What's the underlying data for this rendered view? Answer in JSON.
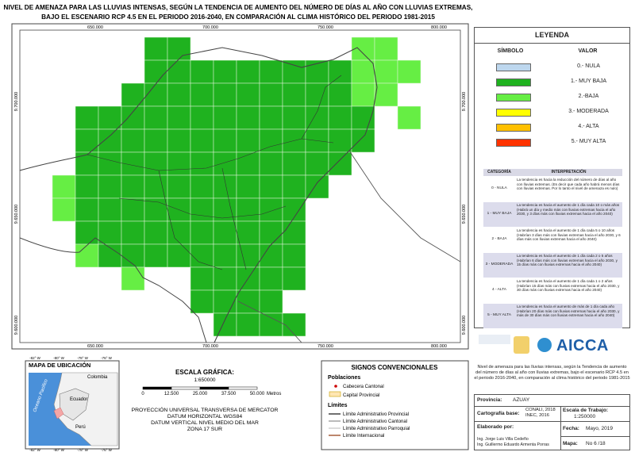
{
  "title": [
    "NIVEL DE AMENAZA PARA LAS LLUVIAS INTENSAS, SEGÚN LA TENDENCIA DE AUMENTO DEL NÚMERO DE DÍAS AL AÑO CON LLUVIAS EXTREMAS,",
    "BAJO EL ESCENARIO RCP 4.5 EN EL PERIODO 2016-2040, EN COMPARACIÓN AL CLIMA HISTÓRICO DEL PERIODO 1981-2015"
  ],
  "map": {
    "x_labels": [
      "650.000",
      "700.000",
      "750.000",
      "800.000"
    ],
    "y_labels": [
      "9.700.000",
      "9.650.000",
      "9.600.000"
    ]
  },
  "legend": {
    "title": "LEYENDA",
    "headers": [
      "SÍMBOLO",
      "VALOR"
    ],
    "items": [
      {
        "label": "0.- NULA",
        "color": "#bdd7ee"
      },
      {
        "label": "1.- MUY BAJA",
        "color": "#1fb21f"
      },
      {
        "label": "2.-BAJA",
        "color": "#66ee44"
      },
      {
        "label": "3.- MODERADA",
        "color": "#ffff00"
      },
      {
        "label": "4.- ALTA",
        "color": "#ffc000"
      },
      {
        "label": "5.- MUY ALTA",
        "color": "#ff3300"
      }
    ]
  },
  "interpretation": {
    "headers": [
      "CATEGORÍA",
      "INTERPRETACIÓN"
    ],
    "rows": [
      [
        "0 - NULA",
        "La tendencia es hacia la reducción del número de días al año con lluvias extremas. (Es decir que cada año habrá menos días con lluvias extremas. Por lo tanto el nivel de amenaza es nulo)"
      ],
      [
        "1 - MUY BAJA",
        "La tendencia es hacia el aumento de 1 día cada 10 o más años (Habrá un día y medio más con lluvias extremas hacia el año 2030, y 3 días más con lluvias extremas hacia el año 2040)"
      ],
      [
        "2 - BAJA",
        "La tendencia es hacia el aumento de 1 día cada 5 o 10 años (Habrían 3 días más con lluvias extremas hacia el año 2030, y 6 días más con lluvias extremas hacia el año 2040)"
      ],
      [
        "3 - MODERADA",
        "La tendencia es hacia el aumento de 1 día cada 2 o 5 años (Habrían 6 días más con lluvias extremas hacia el año 2030, y 15 días más con lluvias extremas hacia el año 2040)"
      ],
      [
        "4 - ALTA",
        "La tendencia es hacia el aumento de 1 día cada 1 o 2 años (Habrían 15 días más con lluvias extremas hacia el año 2030, y 30 días más con lluvias extremas hacia el año 2040)"
      ],
      [
        "5 - MUY ALTA",
        "La tendencia es hacia el aumento de más de 1 día cada año (Habrían 20 días más con lluvias extremas hacia el año 2030, y más de 30 días más con lluvias extremas hacia el año 2040)"
      ]
    ]
  },
  "logo": "AICCA",
  "description": "Nivel de amenaza para las lluvias intensas, según la Tendencia de aumento del número de días al año con lluvias extremas, bajo el escenario RCP 4.5 en el periodo 2016-2040, en comparación al clima histórico del periodo 1981-2015",
  "info": {
    "provincia_label": "Provincia:",
    "provincia": "AZUAY",
    "cartografia_label": "Cartografía base:",
    "cartografia": [
      "CONALI, 2018",
      "INEC, 2016"
    ],
    "escala_label": "Escala de Trabajo:",
    "escala": "1:250000",
    "elaborado_label": "Elaborado por:",
    "elaborado": [
      "Ing. Jorge Luis Villa Cedeño",
      "Ing. Guillermo Eduardo Armenta Porras"
    ],
    "fecha_label": "Fecha:",
    "fecha": "Mayo, 2019",
    "mapa_label": "Mapa:",
    "mapa": "No 6 /18"
  },
  "location_map": {
    "title": "MAPA DE UBICACIÓN",
    "countries": [
      "Colombia",
      "Ecuador",
      "Perú"
    ],
    "ocean": "Oceano Pacifico",
    "x_labels": [
      "-82° W",
      "-80° W",
      "-78° W",
      "-76° W"
    ]
  },
  "scale": {
    "title": "ESCALA GRÁFICA:",
    "ratio": "1:650000",
    "ticks": [
      "0",
      "12.500",
      "25.000",
      "37.500",
      "50.000"
    ],
    "unit": "Metros"
  },
  "projection": [
    "PROYECCIÓN UNIVERSAL TRANSVERSA DE MERCATOR",
    "DATUM HORIZONTAL WGS84",
    "DATUM VERTICAL NIVEL MEDIO DEL MAR",
    "ZONA 17 SUR"
  ],
  "signs": {
    "title": "SIGNOS CONVENCIONALES",
    "poblaciones": "Poblaciones",
    "cabecera": "Cabecera Cantonal",
    "capital": "Capital Provincial",
    "limites": "Límites",
    "limit_items": [
      "Límite Administrativo Provincial",
      "Límite Administrativo Cantonal",
      "Límite Administrativo Parroquial",
      "Límite Internacional"
    ]
  }
}
